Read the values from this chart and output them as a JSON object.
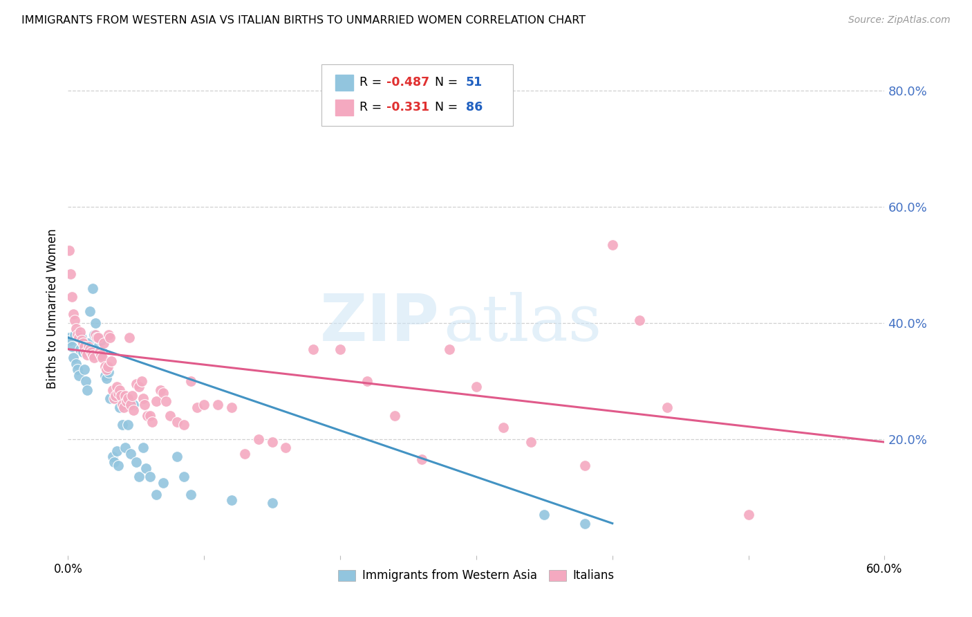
{
  "title": "IMMIGRANTS FROM WESTERN ASIA VS ITALIAN BIRTHS TO UNMARRIED WOMEN CORRELATION CHART",
  "source": "Source: ZipAtlas.com",
  "ylabel": "Births to Unmarried Women",
  "right_yticks": [
    0.2,
    0.4,
    0.6,
    0.8
  ],
  "right_ytick_labels": [
    "20.0%",
    "40.0%",
    "60.0%",
    "80.0%"
  ],
  "watermark_zip": "ZIP",
  "watermark_atlas": "atlas",
  "legend_blue_r": "-0.487",
  "legend_blue_n": "51",
  "legend_pink_r": "-0.331",
  "legend_pink_n": "86",
  "legend_label_blue": "Immigrants from Western Asia",
  "legend_label_pink": "Italians",
  "blue_color": "#92c5de",
  "pink_color": "#f4a9c0",
  "trendline_blue": "#4393c3",
  "trendline_pink": "#e05a8a",
  "xlim": [
    0.0,
    0.6
  ],
  "ylim": [
    0.0,
    0.85
  ],
  "blue_scatter": [
    [
      0.001,
      0.375
    ],
    [
      0.002,
      0.37
    ],
    [
      0.003,
      0.36
    ],
    [
      0.004,
      0.34
    ],
    [
      0.005,
      0.38
    ],
    [
      0.006,
      0.33
    ],
    [
      0.007,
      0.32
    ],
    [
      0.008,
      0.31
    ],
    [
      0.009,
      0.355
    ],
    [
      0.01,
      0.375
    ],
    [
      0.011,
      0.35
    ],
    [
      0.012,
      0.32
    ],
    [
      0.013,
      0.3
    ],
    [
      0.014,
      0.285
    ],
    [
      0.015,
      0.365
    ],
    [
      0.016,
      0.42
    ],
    [
      0.018,
      0.46
    ],
    [
      0.019,
      0.38
    ],
    [
      0.02,
      0.4
    ],
    [
      0.021,
      0.35
    ],
    [
      0.022,
      0.36
    ],
    [
      0.024,
      0.37
    ],
    [
      0.025,
      0.35
    ],
    [
      0.027,
      0.31
    ],
    [
      0.028,
      0.305
    ],
    [
      0.03,
      0.315
    ],
    [
      0.031,
      0.27
    ],
    [
      0.033,
      0.17
    ],
    [
      0.034,
      0.16
    ],
    [
      0.036,
      0.18
    ],
    [
      0.037,
      0.155
    ],
    [
      0.038,
      0.255
    ],
    [
      0.04,
      0.225
    ],
    [
      0.042,
      0.185
    ],
    [
      0.044,
      0.225
    ],
    [
      0.046,
      0.175
    ],
    [
      0.048,
      0.26
    ],
    [
      0.05,
      0.16
    ],
    [
      0.052,
      0.135
    ],
    [
      0.055,
      0.185
    ],
    [
      0.057,
      0.15
    ],
    [
      0.06,
      0.135
    ],
    [
      0.065,
      0.105
    ],
    [
      0.07,
      0.125
    ],
    [
      0.08,
      0.17
    ],
    [
      0.085,
      0.135
    ],
    [
      0.09,
      0.105
    ],
    [
      0.12,
      0.095
    ],
    [
      0.15,
      0.09
    ],
    [
      0.35,
      0.07
    ],
    [
      0.38,
      0.055
    ]
  ],
  "pink_scatter": [
    [
      0.001,
      0.525
    ],
    [
      0.002,
      0.485
    ],
    [
      0.003,
      0.445
    ],
    [
      0.004,
      0.415
    ],
    [
      0.005,
      0.405
    ],
    [
      0.006,
      0.39
    ],
    [
      0.007,
      0.38
    ],
    [
      0.008,
      0.375
    ],
    [
      0.009,
      0.385
    ],
    [
      0.01,
      0.37
    ],
    [
      0.011,
      0.365
    ],
    [
      0.012,
      0.36
    ],
    [
      0.013,
      0.35
    ],
    [
      0.014,
      0.345
    ],
    [
      0.015,
      0.36
    ],
    [
      0.016,
      0.355
    ],
    [
      0.017,
      0.35
    ],
    [
      0.018,
      0.345
    ],
    [
      0.019,
      0.34
    ],
    [
      0.02,
      0.38
    ],
    [
      0.021,
      0.375
    ],
    [
      0.022,
      0.375
    ],
    [
      0.023,
      0.35
    ],
    [
      0.024,
      0.345
    ],
    [
      0.025,
      0.34
    ],
    [
      0.026,
      0.365
    ],
    [
      0.027,
      0.325
    ],
    [
      0.028,
      0.32
    ],
    [
      0.029,
      0.325
    ],
    [
      0.03,
      0.38
    ],
    [
      0.031,
      0.375
    ],
    [
      0.032,
      0.335
    ],
    [
      0.033,
      0.285
    ],
    [
      0.034,
      0.27
    ],
    [
      0.035,
      0.275
    ],
    [
      0.036,
      0.29
    ],
    [
      0.037,
      0.28
    ],
    [
      0.038,
      0.285
    ],
    [
      0.039,
      0.275
    ],
    [
      0.04,
      0.26
    ],
    [
      0.041,
      0.255
    ],
    [
      0.042,
      0.275
    ],
    [
      0.043,
      0.265
    ],
    [
      0.044,
      0.27
    ],
    [
      0.045,
      0.375
    ],
    [
      0.046,
      0.26
    ],
    [
      0.047,
      0.275
    ],
    [
      0.048,
      0.25
    ],
    [
      0.05,
      0.295
    ],
    [
      0.052,
      0.29
    ],
    [
      0.054,
      0.3
    ],
    [
      0.055,
      0.27
    ],
    [
      0.056,
      0.26
    ],
    [
      0.058,
      0.24
    ],
    [
      0.06,
      0.24
    ],
    [
      0.062,
      0.23
    ],
    [
      0.065,
      0.265
    ],
    [
      0.068,
      0.285
    ],
    [
      0.07,
      0.28
    ],
    [
      0.072,
      0.265
    ],
    [
      0.075,
      0.24
    ],
    [
      0.08,
      0.23
    ],
    [
      0.085,
      0.225
    ],
    [
      0.09,
      0.3
    ],
    [
      0.095,
      0.255
    ],
    [
      0.1,
      0.26
    ],
    [
      0.11,
      0.26
    ],
    [
      0.12,
      0.255
    ],
    [
      0.13,
      0.175
    ],
    [
      0.14,
      0.2
    ],
    [
      0.15,
      0.195
    ],
    [
      0.16,
      0.185
    ],
    [
      0.18,
      0.355
    ],
    [
      0.2,
      0.355
    ],
    [
      0.22,
      0.3
    ],
    [
      0.24,
      0.24
    ],
    [
      0.26,
      0.165
    ],
    [
      0.28,
      0.355
    ],
    [
      0.3,
      0.29
    ],
    [
      0.32,
      0.22
    ],
    [
      0.34,
      0.195
    ],
    [
      0.38,
      0.155
    ],
    [
      0.4,
      0.535
    ],
    [
      0.42,
      0.405
    ],
    [
      0.44,
      0.255
    ],
    [
      0.5,
      0.07
    ]
  ],
  "blue_trend_x": [
    0.0,
    0.4
  ],
  "blue_trend_y": [
    0.375,
    0.055
  ],
  "pink_trend_x": [
    0.0,
    0.6
  ],
  "pink_trend_y": [
    0.355,
    0.195
  ]
}
